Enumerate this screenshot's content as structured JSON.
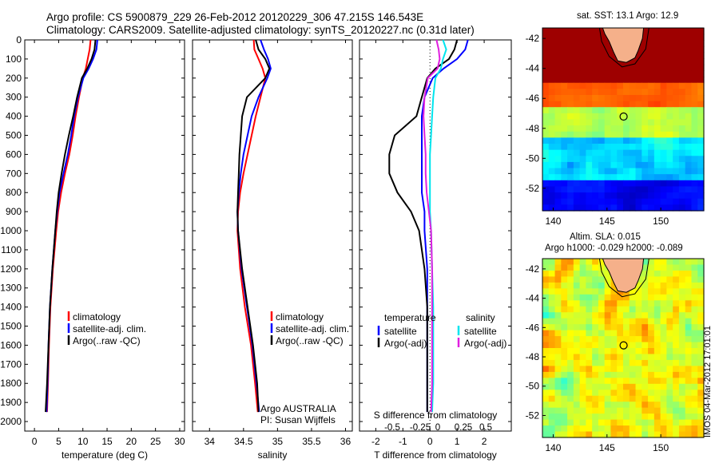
{
  "header": {
    "line1": "Argo profile: CS 5900879_229 26-Feb-2012 20120229_306 47.215S 146.543E",
    "line2": "Climatology: CARS2009. Satellite-adjusted climatology: synTS_20120227.nc (0.31d later)"
  },
  "colors": {
    "climatology": "#ff0000",
    "satellite": "#0000ff",
    "argo": "#000000",
    "sat_salinity": "#00e5ee",
    "argo_salinity": "#e020e0",
    "land": "#f5b08a"
  },
  "side": {
    "sst_title": "sat. SST: 13.1  Argo: 12.9",
    "sla_title1": "Altim. SLA: 0.015",
    "sla_title2": "Argo h1000: -0.029 h2000: -0.089",
    "stamp": "IMOS 04-Mar-2012 17:01:01"
  },
  "chart_data": [
    {
      "type": "line",
      "name": "temperature-panel",
      "xlabel": "temperature (deg C)",
      "ylabel": "",
      "xlim": [
        -2,
        31
      ],
      "ylim": [
        2050,
        0
      ],
      "x_ticks": [
        0,
        5,
        10,
        15,
        20,
        25,
        30
      ],
      "y_ticks": [
        0,
        100,
        200,
        300,
        400,
        500,
        600,
        700,
        800,
        900,
        1000,
        1100,
        1200,
        1300,
        1400,
        1500,
        1600,
        1700,
        1800,
        1900,
        2000
      ],
      "legend": {
        "placement": "lower-center",
        "entries": [
          "climatology",
          "satellite-adj. clim.",
          "Argo(..raw -QC)"
        ]
      },
      "series": [
        {
          "name": "climatology",
          "color": "red",
          "depth": [
            0,
            50,
            100,
            150,
            200,
            300,
            400,
            500,
            600,
            700,
            800,
            900,
            1000,
            1200,
            1400,
            1600,
            1800,
            1950
          ],
          "values": [
            11.6,
            11.4,
            11.0,
            10.6,
            10.0,
            9.2,
            8.5,
            7.9,
            7.2,
            6.3,
            5.5,
            4.9,
            4.5,
            3.8,
            3.3,
            3.0,
            2.8,
            2.6
          ]
        },
        {
          "name": "satellite-adj. clim.",
          "color": "blue",
          "depth": [
            0,
            50,
            100,
            150,
            200,
            300,
            400,
            500,
            600,
            700,
            800,
            900,
            1000,
            1200,
            1400,
            1600,
            1800,
            1950
          ],
          "values": [
            13.0,
            12.8,
            12.1,
            11.2,
            10.1,
            9.0,
            8.2,
            7.6,
            6.9,
            6.0,
            5.2,
            4.7,
            4.3,
            3.7,
            3.2,
            2.9,
            2.7,
            2.5
          ]
        },
        {
          "name": "Argo(..raw -QC)",
          "color": "black",
          "depth": [
            0,
            50,
            100,
            150,
            200,
            300,
            400,
            500,
            600,
            700,
            800,
            900,
            1000,
            1200,
            1400,
            1600,
            1800,
            1950
          ],
          "values": [
            12.6,
            12.4,
            11.8,
            10.9,
            9.8,
            8.8,
            8.0,
            7.1,
            6.3,
            5.6,
            5.0,
            4.6,
            4.3,
            3.7,
            3.2,
            2.9,
            2.6,
            2.3
          ]
        }
      ]
    },
    {
      "type": "line",
      "name": "salinity-panel",
      "xlabel": "salinity",
      "ylabel": "",
      "xlim": [
        33.75,
        36.1
      ],
      "ylim": [
        2050,
        0
      ],
      "x_ticks": [
        34,
        34.5,
        35,
        35.5,
        36
      ],
      "legend": {
        "placement": "lower-right",
        "entries": [
          "climatology",
          "satellite-adj. clim.",
          "Argo(..raw -QC)"
        ]
      },
      "annotations": [
        "Argo AUSTRALIA",
        "PI: Susan Wijffels"
      ],
      "series": [
        {
          "name": "climatology",
          "color": "red",
          "depth": [
            0,
            50,
            100,
            150,
            200,
            300,
            400,
            500,
            600,
            700,
            800,
            900,
            1000,
            1200,
            1400,
            1600,
            1800,
            1950
          ],
          "values": [
            34.65,
            34.66,
            34.72,
            34.78,
            34.82,
            34.75,
            34.68,
            34.62,
            34.56,
            34.5,
            34.45,
            34.42,
            34.41,
            34.45,
            34.52,
            34.61,
            34.67,
            34.71
          ]
        },
        {
          "name": "satellite-adj. clim.",
          "color": "blue",
          "depth": [
            0,
            50,
            100,
            150,
            200,
            300,
            400,
            500,
            600,
            700,
            800,
            900,
            1000,
            1200,
            1400,
            1600,
            1800,
            1950
          ],
          "values": [
            34.75,
            34.8,
            34.86,
            34.9,
            34.85,
            34.72,
            34.62,
            34.56,
            34.5,
            34.46,
            34.43,
            34.41,
            34.42,
            34.47,
            34.55,
            34.63,
            34.69,
            34.73
          ]
        },
        {
          "name": "Argo(..raw -QC)",
          "color": "black",
          "depth": [
            0,
            50,
            100,
            150,
            200,
            300,
            400,
            500,
            600,
            700,
            800,
            900,
            1000,
            1200,
            1400,
            1600,
            1800,
            1950
          ],
          "values": [
            34.68,
            34.72,
            34.82,
            34.88,
            34.82,
            34.55,
            34.48,
            34.46,
            34.44,
            34.43,
            34.42,
            34.41,
            34.42,
            34.48,
            34.56,
            34.64,
            34.7,
            34.72
          ]
        }
      ]
    },
    {
      "type": "line",
      "name": "difference-panel",
      "xlabel": "T difference from climatology",
      "xlabel_top": "S difference from climatology",
      "xlim": [
        -2.6,
        3.0
      ],
      "ylim": [
        2050,
        0
      ],
      "x_ticks": [
        -2,
        -1,
        0,
        1,
        2
      ],
      "x_ticks_top": [
        "-0.5",
        "-0.25",
        "0",
        "0.25",
        "0.5"
      ],
      "legend": {
        "placement": "lower-center",
        "headers": [
          "temperature",
          "salinity"
        ],
        "entries": [
          "satellite",
          "Argo(-adj)",
          "satellite",
          "Argo(-adj)"
        ]
      },
      "series": [
        {
          "name": "temperature satellite",
          "color": "blue",
          "depth": [
            0,
            50,
            100,
            150,
            200,
            300,
            400,
            500,
            600,
            700,
            800,
            900,
            1000,
            1200,
            1400,
            1600,
            1800,
            1950
          ],
          "values": [
            1.4,
            1.3,
            1.0,
            0.5,
            0.1,
            -0.2,
            -0.3,
            -0.3,
            -0.3,
            -0.3,
            -0.3,
            -0.2,
            -0.2,
            -0.1,
            -0.1,
            -0.1,
            -0.1,
            -0.1
          ]
        },
        {
          "name": "temperature Argo(-adj)",
          "color": "black",
          "depth": [
            0,
            50,
            100,
            150,
            200,
            300,
            400,
            500,
            600,
            700,
            800,
            900,
            1000,
            1200,
            1400,
            1600,
            1800,
            1950
          ],
          "values": [
            1.0,
            0.9,
            0.7,
            0.2,
            -0.1,
            -0.3,
            -0.5,
            -1.3,
            -1.5,
            -1.5,
            -1.2,
            -0.7,
            -0.4,
            -0.2,
            -0.1,
            -0.1,
            -0.1,
            -0.1
          ]
        },
        {
          "name": "salinity satellite",
          "color": "cyan",
          "depth": [
            0,
            50,
            100,
            150,
            200,
            300,
            400,
            500,
            600,
            700,
            800,
            900,
            1000,
            1200,
            1400,
            1600,
            1800,
            1950
          ],
          "values": [
            0.12,
            0.15,
            0.12,
            0.1,
            0.05,
            0.03,
            0.02,
            0.01,
            0.0,
            0.0,
            0.0,
            0.0,
            0.01,
            0.02,
            0.03,
            0.03,
            0.03,
            0.02
          ]
        },
        {
          "name": "salinity Argo(-adj)",
          "color": "magenta",
          "depth": [
            0,
            50,
            100,
            150,
            200,
            300,
            400,
            500,
            600,
            700,
            800,
            900,
            1000,
            1200,
            1400,
            1600,
            1800,
            1950
          ],
          "values": [
            0.06,
            0.08,
            0.09,
            0.07,
            -0.02,
            -0.05,
            -0.06,
            -0.05,
            -0.04,
            -0.04,
            -0.03,
            -0.01,
            0.01,
            0.02,
            0.02,
            0.02,
            0.02,
            0.01
          ]
        }
      ]
    },
    {
      "type": "heatmap",
      "name": "sst-map",
      "xlim": [
        139,
        154
      ],
      "ylim": [
        -53.5,
        -41.3
      ],
      "x_ticks": [
        140,
        145,
        150
      ],
      "y_ticks": [
        -42,
        -44,
        -46,
        -48,
        -50,
        -52
      ],
      "argo_position": [
        146.543,
        -47.215
      ]
    },
    {
      "type": "heatmap",
      "name": "sla-map",
      "xlim": [
        139,
        154
      ],
      "ylim": [
        -53.5,
        -41.3
      ],
      "x_ticks": [
        140,
        145,
        150
      ],
      "y_ticks": [
        -42,
        -44,
        -46,
        -48,
        -50,
        -52
      ],
      "argo_position": [
        146.543,
        -47.215
      ]
    }
  ]
}
